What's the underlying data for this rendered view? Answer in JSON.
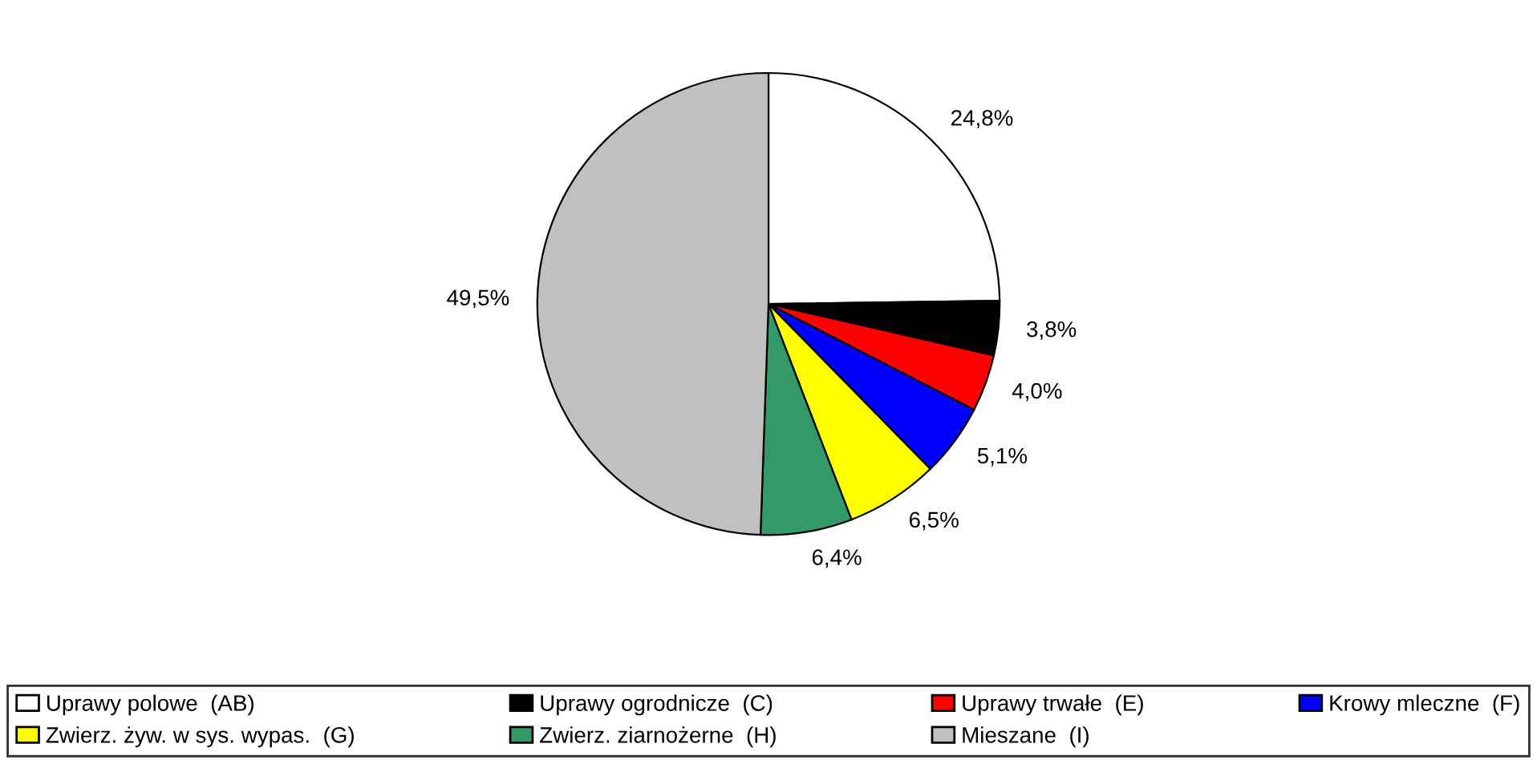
{
  "chart_data": {
    "type": "pie",
    "categories": [
      "Uprawy polowe  (AB)",
      "Uprawy ogrodnicze  (C)",
      "Uprawy trwałe  (E)",
      "Krowy mleczne  (F)",
      "Zwierz. żyw. w sys. wypas.  (G)",
      "Zwierz. ziarnożerne  (H)",
      "Mieszane  (I)"
    ],
    "values": [
      24.8,
      3.8,
      4.0,
      5.1,
      6.5,
      6.4,
      49.5
    ],
    "value_labels": [
      "24,8%",
      "3,8%",
      "4,0%",
      "5,1%",
      "6,5%",
      "6,4%",
      "49,5%"
    ],
    "colors": [
      "#ffffff",
      "#000000",
      "#ff0000",
      "#0000ff",
      "#ffff00",
      "#339966",
      "#c0c0c0"
    ],
    "legend": "bottom"
  }
}
